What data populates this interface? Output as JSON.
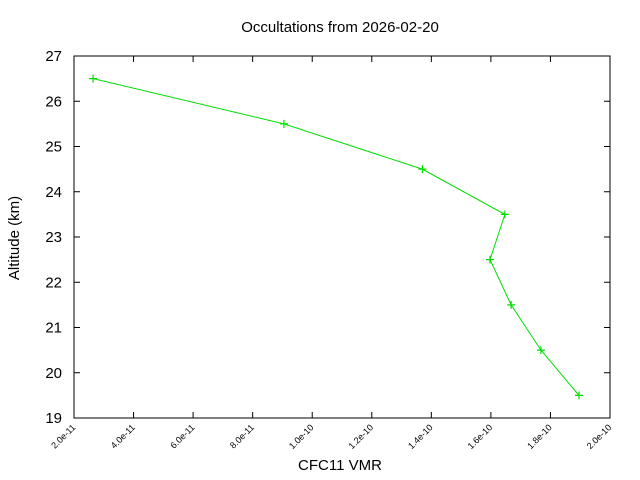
{
  "chart_data": {
    "type": "line",
    "title": "Occultations from 2026-02-20",
    "xlabel": "CFC11 VMR",
    "ylabel": "Altitude (km)",
    "xlim": [
      2e-11,
      2e-10
    ],
    "ylim": [
      19,
      27
    ],
    "x_ticks": [
      "2.0e-11",
      "4.0e-11",
      "6.0e-11",
      "8.0e-11",
      "1.0e-10",
      "1.2e-10",
      "1.4e-10",
      "1.6e-10",
      "1.8e-10",
      "2.0e-10"
    ],
    "y_ticks": [
      "19",
      "20",
      "21",
      "22",
      "23",
      "24",
      "25",
      "26",
      "27"
    ],
    "grid": false,
    "legend": null,
    "series": [
      {
        "name": "CFC11",
        "color": "#00dd00",
        "marker": "+",
        "x": [
          2.64e-11,
          9.05e-11,
          1.37e-10,
          1.647e-10,
          1.597e-10,
          1.668e-10,
          1.768e-10,
          1.896e-10
        ],
        "y": [
          26.5,
          25.5,
          24.5,
          23.5,
          22.5,
          21.5,
          20.5,
          19.5
        ]
      }
    ]
  }
}
